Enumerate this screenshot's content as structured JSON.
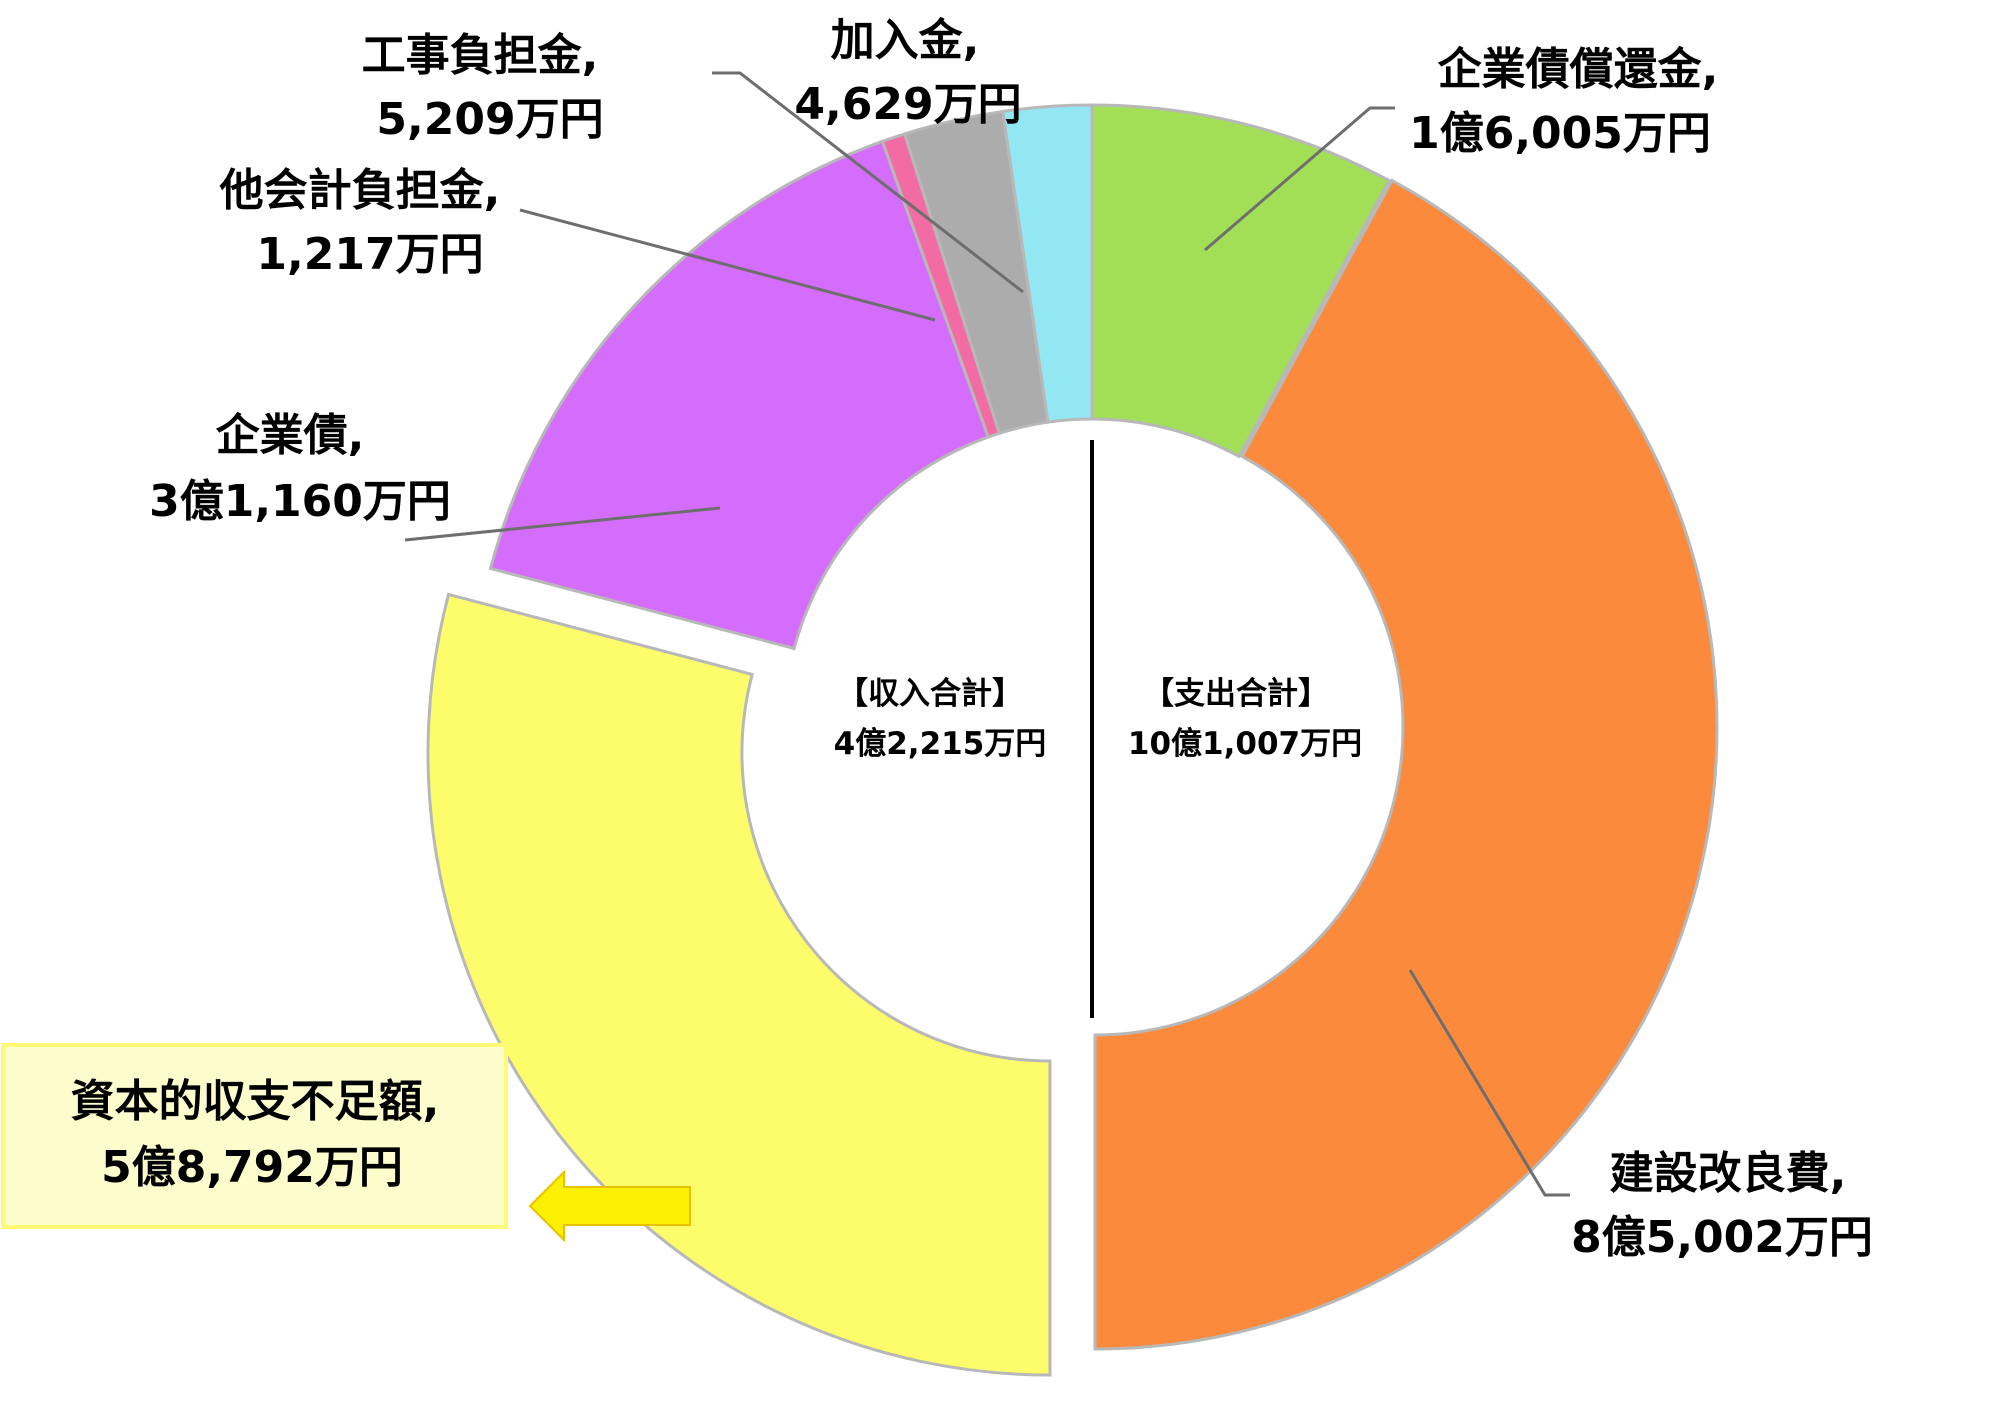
{
  "chart_data": {
    "type": "donut",
    "center_labels": {
      "income": {
        "title": "【収入合計】",
        "value": "4億2,215万円"
      },
      "expense": {
        "title": "【支出合計】",
        "value": "10億1,007万円"
      }
    },
    "expense_side": {
      "total": 101007,
      "slices": [
        {
          "name": "企業債償還金,",
          "amount_text": "1億6,005万円",
          "value": 16005,
          "color": "#a2df57"
        },
        {
          "name": "建設改良費,",
          "amount_text": "8億5,002万円",
          "value": 85002,
          "color": "#fb8a3c"
        }
      ]
    },
    "income_side": {
      "total": 101007,
      "slices": [
        {
          "name": "加入金,",
          "amount_text": "4,629万円",
          "value": 4629,
          "color": "#92e7f2"
        },
        {
          "name": "工事負担金,",
          "amount_text": "5,209万円",
          "value": 5209,
          "color": "#acacac"
        },
        {
          "name": "他会計負担金,",
          "amount_text": "1,217万円",
          "value": 1217,
          "color": "#f26ba3"
        },
        {
          "name": "企業債,",
          "amount_text": "3億1,160万円",
          "value": 31160,
          "color": "#d56dfc"
        },
        {
          "name": "資本的収支不足額,",
          "amount_text": "5億8,792万円",
          "value": 58792,
          "color": "#fdfd6c"
        }
      ]
    },
    "callout": {
      "highlight_fill": "#fdfccc",
      "highlight_border": "#fdfb73",
      "arrow_color": "#fcf000"
    }
  }
}
